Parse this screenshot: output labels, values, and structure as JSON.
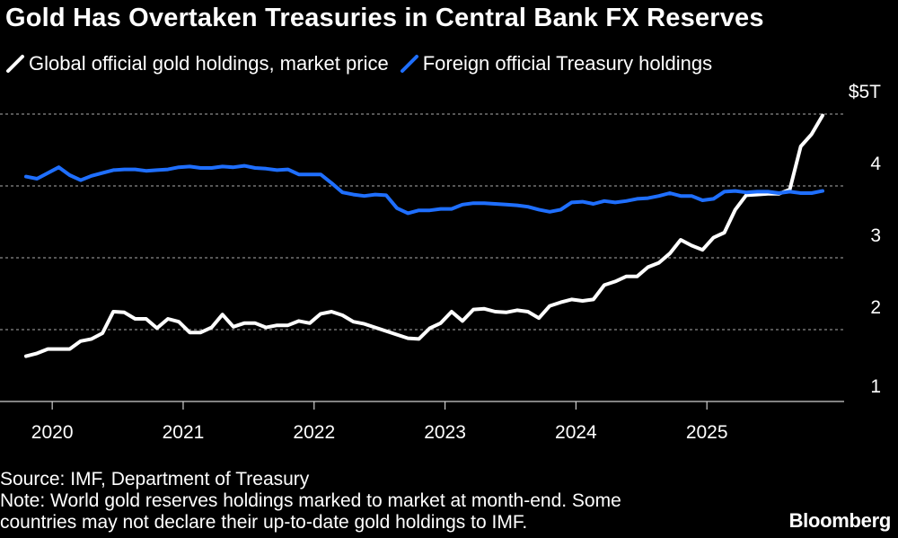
{
  "header": {
    "title": "Gold Has Overtaken Treasuries in Central Bank FX Reserves"
  },
  "footer": {
    "source": "Source: IMF, Department of Treasury",
    "note_line1": "Note: World gold reserves holdings marked to market at month-end. Some",
    "note_line2": "countries may not declare their up-to-date gold holdings to IMF.",
    "brand": "Bloomberg"
  },
  "colors": {
    "background": "#000000",
    "gold_series": "#ffffff",
    "treasury_series": "#1f6fff",
    "grid": "#8a8a8a",
    "text": "#ffffff"
  },
  "chart_data": {
    "type": "line",
    "unit_label": "$5T",
    "x_start": "2019-12",
    "x_step": "month",
    "ylim": [
      1,
      5
    ],
    "yticks": [
      1,
      2,
      3,
      4,
      5
    ],
    "ytick_labels": [
      "1",
      "2",
      "3",
      "4",
      "$5T"
    ],
    "xticks": [
      {
        "date": "2020-01",
        "label": "2020"
      },
      {
        "date": "2021-01",
        "label": "2021"
      },
      {
        "date": "2022-01",
        "label": "2022"
      },
      {
        "date": "2023-01",
        "label": "2023"
      },
      {
        "date": "2024-01",
        "label": "2024"
      },
      {
        "date": "2025-01",
        "label": "2025"
      }
    ],
    "grid": "horizontal dashed",
    "legend_position": "top-left",
    "series": [
      {
        "name": "Global official gold holdings, market price",
        "color": "#ffffff",
        "values": [
          1.63,
          1.67,
          1.73,
          1.73,
          1.73,
          1.84,
          1.87,
          1.95,
          2.25,
          2.24,
          2.15,
          2.15,
          2.02,
          2.15,
          2.11,
          1.96,
          1.96,
          2.03,
          2.21,
          2.04,
          2.09,
          2.09,
          2.03,
          2.06,
          2.06,
          2.12,
          2.09,
          2.22,
          2.25,
          2.2,
          2.11,
          2.08,
          2.03,
          1.98,
          1.93,
          1.88,
          1.87,
          2.02,
          2.09,
          2.25,
          2.12,
          2.28,
          2.29,
          2.25,
          2.24,
          2.27,
          2.25,
          2.16,
          2.33,
          2.38,
          2.42,
          2.4,
          2.42,
          2.62,
          2.67,
          2.74,
          2.74,
          2.87,
          2.93,
          3.06,
          3.25,
          3.17,
          3.11,
          3.28,
          3.35,
          3.67,
          3.87,
          3.88,
          3.89,
          3.89,
          3.95,
          4.55,
          4.72,
          4.98
        ]
      },
      {
        "name": "Foreign official Treasury holdings",
        "color": "#1f6fff",
        "values": [
          4.13,
          4.1,
          4.18,
          4.26,
          4.15,
          4.08,
          4.14,
          4.18,
          4.22,
          4.23,
          4.23,
          4.21,
          4.22,
          4.23,
          4.26,
          4.27,
          4.25,
          4.25,
          4.27,
          4.26,
          4.28,
          4.25,
          4.24,
          4.22,
          4.23,
          4.16,
          4.16,
          4.16,
          4.04,
          3.91,
          3.88,
          3.86,
          3.88,
          3.87,
          3.69,
          3.62,
          3.66,
          3.66,
          3.68,
          3.68,
          3.74,
          3.76,
          3.76,
          3.75,
          3.74,
          3.73,
          3.71,
          3.67,
          3.64,
          3.67,
          3.77,
          3.78,
          3.75,
          3.79,
          3.77,
          3.79,
          3.82,
          3.83,
          3.86,
          3.9,
          3.86,
          3.86,
          3.8,
          3.82,
          3.92,
          3.93,
          3.91,
          3.92,
          3.92,
          3.9,
          3.92,
          3.9,
          3.9,
          3.93
        ]
      }
    ]
  }
}
